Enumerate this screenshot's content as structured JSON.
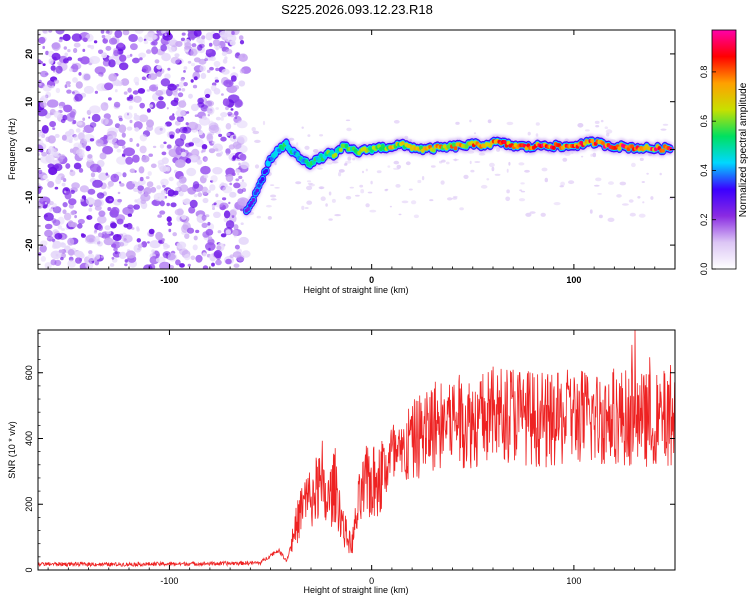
{
  "title": "S225.2026.093.12.23.R18",
  "colors": {
    "snr_line": "#ee2222",
    "spectrogram_background": "#ffffff",
    "colormap": [
      "#ffffff",
      "#dcc6f5",
      "#8a2be2",
      "#3b00ff",
      "#00d8ff",
      "#00e060",
      "#c8e000",
      "#ffa000",
      "#ff0000",
      "#ff00aa"
    ]
  },
  "chart_data": [
    {
      "type": "heatmap",
      "name": "spectrogram",
      "title": "S225.2026.093.12.23.R18",
      "xlabel": "Height of straight line (km)",
      "ylabel": "Frequency (Hz)",
      "xlim": [
        -165,
        150
      ],
      "ylim": [
        -25,
        25
      ],
      "xticks": [
        -100,
        0,
        100
      ],
      "yticks": [
        -20,
        -10,
        0,
        10,
        20
      ],
      "noise_region_x": [
        -165,
        -62
      ],
      "ridge": {
        "x": [
          -62,
          -58,
          -54,
          -50,
          -46,
          -42,
          -38,
          -34,
          -30,
          -26,
          -22,
          -18,
          -14,
          -10,
          -6,
          -2,
          2,
          8,
          14,
          20,
          26,
          32,
          38,
          44,
          50,
          56,
          62,
          70,
          78,
          86,
          94,
          102,
          110,
          118,
          126,
          134,
          142,
          148
        ],
        "frequency_hz": [
          -13,
          -10,
          -6,
          -2,
          0,
          1,
          -1,
          -2,
          -3,
          -2,
          -1,
          -1,
          0.5,
          0,
          -0.5,
          0,
          0.3,
          0.5,
          1,
          0.5,
          0,
          0.3,
          0.5,
          0.8,
          1,
          1,
          1.5,
          0.8,
          0.5,
          1,
          0.5,
          1,
          1.5,
          0.8,
          0.5,
          0.3,
          0.2,
          0.2
        ],
        "amplitude": [
          0.3,
          0.35,
          0.4,
          0.45,
          0.5,
          0.55,
          0.5,
          0.5,
          0.55,
          0.55,
          0.6,
          0.6,
          0.65,
          0.65,
          0.6,
          0.65,
          0.7,
          0.7,
          0.75,
          0.7,
          0.75,
          0.8,
          0.75,
          0.8,
          0.8,
          0.85,
          0.85,
          0.9,
          0.85,
          0.9,
          0.9,
          0.85,
          0.9,
          0.9,
          0.9,
          0.85,
          0.9,
          0.9
        ]
      },
      "colorbar": {
        "label": "Normalized spectral amplitude",
        "range": [
          0,
          0.97
        ],
        "ticks": [
          0.0,
          0.2,
          0.4,
          0.6,
          0.8
        ]
      }
    },
    {
      "type": "line",
      "name": "snr",
      "xlabel": "Height of straight line (km)",
      "ylabel": "SNR (10 * v/v)",
      "xlim": [
        -165,
        150
      ],
      "ylim": [
        0,
        730
      ],
      "xticks": [
        -100,
        0,
        100
      ],
      "yticks": [
        0,
        200,
        400,
        600
      ],
      "series": [
        {
          "name": "SNR",
          "x": [
            -165,
            -150,
            -130,
            -110,
            -90,
            -70,
            -55,
            -50,
            -46,
            -42,
            -38,
            -34,
            -30,
            -26,
            -22,
            -18,
            -14,
            -10,
            -6,
            -2,
            2,
            6,
            10,
            14,
            18,
            22,
            26,
            30,
            40,
            50,
            60,
            70,
            80,
            90,
            100,
            110,
            120,
            130,
            140,
            150
          ],
          "values": [
            18,
            18,
            17,
            18,
            19,
            20,
            22,
            45,
            60,
            28,
            120,
            200,
            220,
            250,
            200,
            260,
            130,
            70,
            210,
            270,
            260,
            300,
            350,
            330,
            380,
            400,
            420,
            440,
            460,
            450,
            470,
            480,
            460,
            450,
            470,
            460,
            470,
            460,
            455,
            470
          ]
        }
      ]
    }
  ]
}
